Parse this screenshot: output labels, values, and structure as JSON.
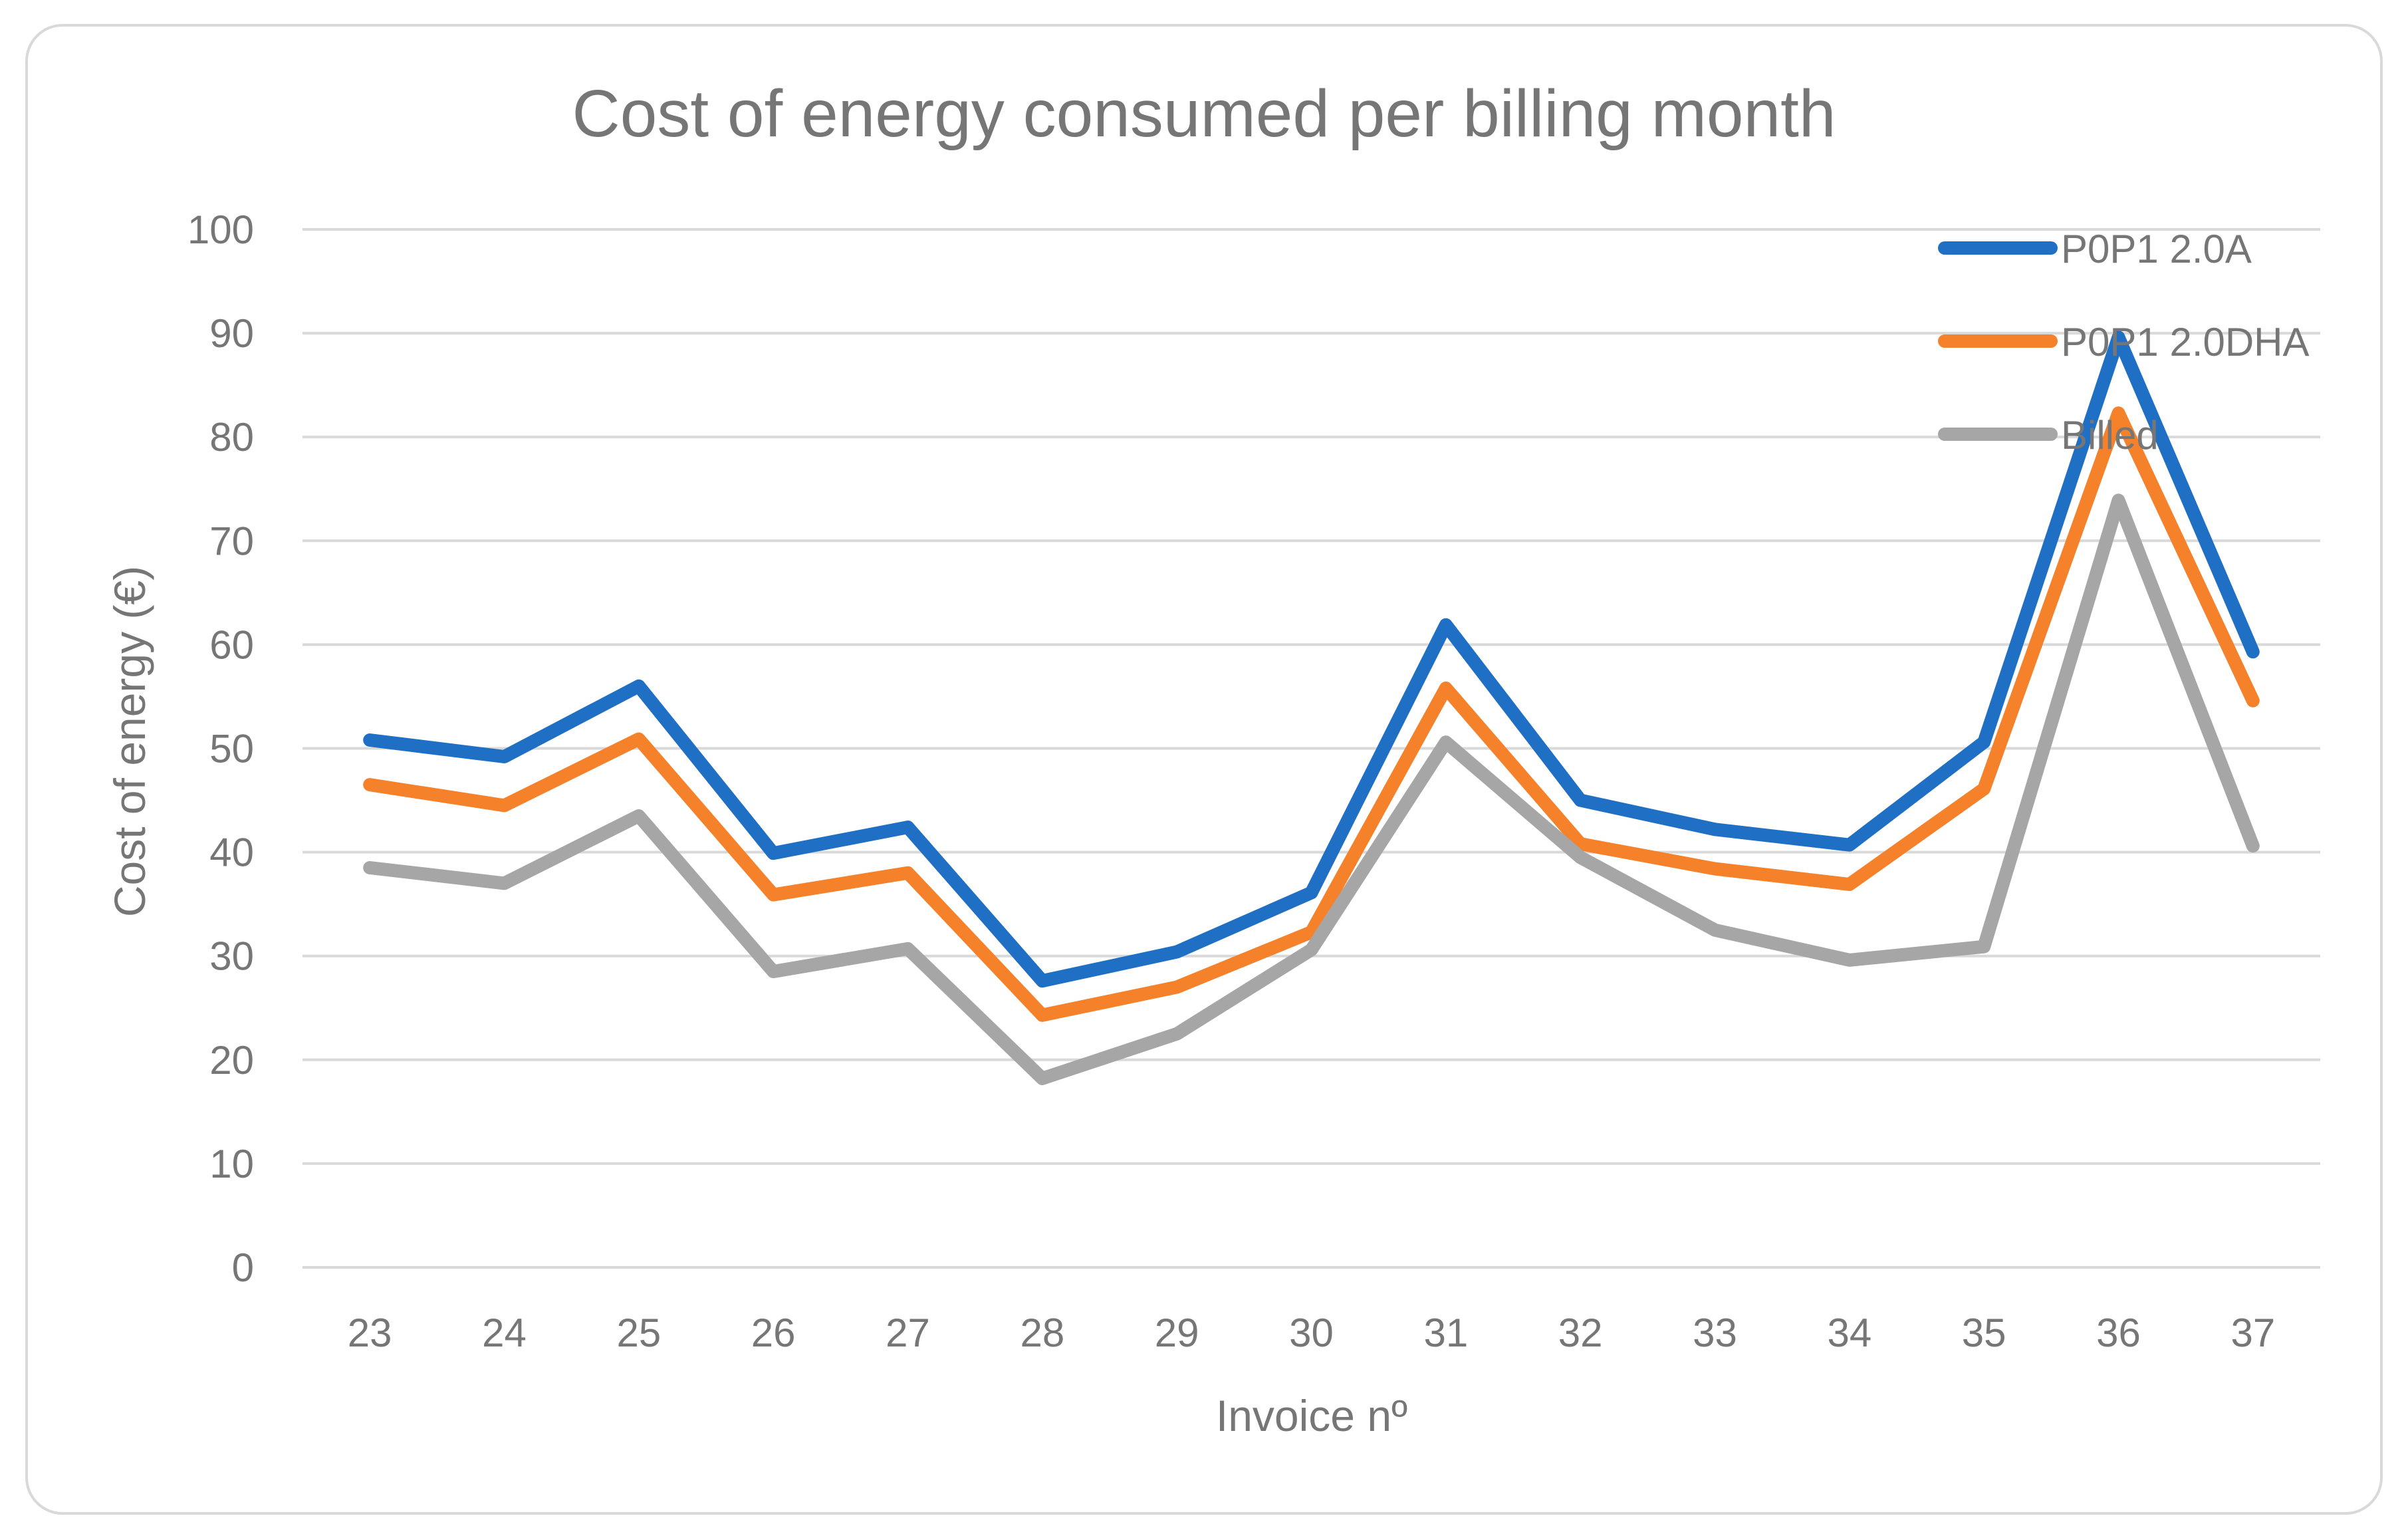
{
  "chart_data": {
    "type": "line",
    "title": "Cost of energy consumed per billing month",
    "xlabel": "Invoice nº",
    "ylabel": "Cost of energy  (€)",
    "ylim": [
      0,
      100
    ],
    "y_ticks": [
      0,
      10,
      20,
      30,
      40,
      50,
      60,
      70,
      80,
      90,
      100
    ],
    "grid": true,
    "legend_position": "top-right",
    "categories": [
      "23",
      "24",
      "25",
      "26",
      "27",
      "28",
      "29",
      "30",
      "31",
      "32",
      "33",
      "34",
      "35",
      "36",
      "37"
    ],
    "series": [
      {
        "name": "P0P1 2.0A",
        "color": "#1f6fc5",
        "values": [
          50.8,
          49.2,
          56.0,
          39.9,
          42.4,
          27.6,
          30.4,
          36.1,
          61.9,
          45.0,
          42.2,
          40.7,
          50.6,
          89.6,
          59.3
        ]
      },
      {
        "name": "P0P1 2.0DHA",
        "color": "#f5812b",
        "values": [
          46.5,
          44.5,
          50.9,
          35.9,
          38.0,
          24.3,
          27.0,
          32.3,
          55.8,
          40.8,
          38.4,
          36.9,
          46.1,
          82.3,
          54.6
        ]
      },
      {
        "name": "Billed",
        "color": "#a6a6a6",
        "values": [
          38.5,
          37.0,
          43.5,
          28.5,
          30.7,
          18.2,
          22.5,
          30.6,
          50.6,
          39.5,
          32.5,
          29.6,
          30.9,
          73.9,
          40.6
        ]
      }
    ]
  }
}
